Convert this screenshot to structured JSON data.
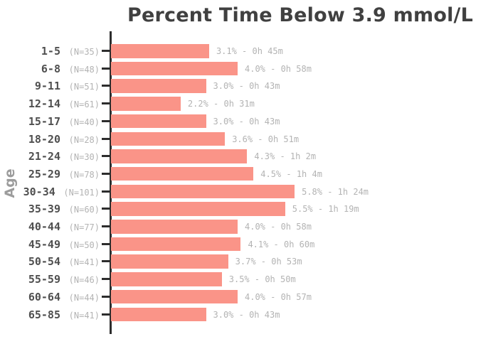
{
  "title": "Percent Time Below 3.9 mmol/L",
  "y_axis_label": "Age",
  "colors": {
    "bar": "#FA9488",
    "axis": "#2d2d2d",
    "title_text": "#404040",
    "age_label_text": "#4f4f4f",
    "muted_label_text": "#b3b3b3",
    "y_axis_title_text": "#9c9c9c",
    "background": "#ffffff"
  },
  "chart_data": {
    "type": "bar",
    "orientation": "horizontal",
    "title": "Percent Time Below 3.9 mmol/L",
    "xlabel": "",
    "ylabel": "Age",
    "grid": false,
    "legend": null,
    "value_unit": "percent of time below 3.9 mmol/L",
    "categories": [
      "1-5",
      "6-8",
      "9-11",
      "12-14",
      "15-17",
      "18-20",
      "21-24",
      "25-29",
      "30-34",
      "35-39",
      "40-44",
      "45-49",
      "50-54",
      "55-59",
      "60-64",
      "65-85"
    ],
    "n_labels": [
      "(N=35)",
      "(N=48)",
      "(N=51)",
      "(N=61)",
      "(N=40)",
      "(N=28)",
      "(N=30)",
      "(N=78)",
      "(N=101)",
      "(N=60)",
      "(N=77)",
      "(N=50)",
      "(N=41)",
      "(N=46)",
      "(N=44)",
      "(N=41)"
    ],
    "sample_sizes": [
      35,
      48,
      51,
      61,
      40,
      28,
      30,
      78,
      101,
      60,
      77,
      50,
      41,
      46,
      44,
      41
    ],
    "values": [
      3.1,
      4.0,
      3.0,
      2.2,
      3.0,
      3.6,
      4.3,
      4.5,
      5.8,
      5.5,
      4.0,
      4.1,
      3.7,
      3.5,
      4.0,
      3.0
    ],
    "bar_labels": [
      "3.1% - 0h 45m",
      "4.0% - 0h 58m",
      "3.0% - 0h 43m",
      "2.2% - 0h 31m",
      "3.0% - 0h 43m",
      "3.6% - 0h 51m",
      "4.3% - 1h 2m",
      "4.5% - 1h 4m",
      "5.8% - 1h 24m",
      "5.5% - 1h 19m",
      "4.0% - 0h 58m",
      "4.1% - 0h 60m",
      "3.7% - 0h 53m",
      "3.5% - 0h 50m",
      "4.0% - 0h 57m",
      "3.0% - 0h 43m"
    ],
    "bar_color": "#FA9488"
  }
}
